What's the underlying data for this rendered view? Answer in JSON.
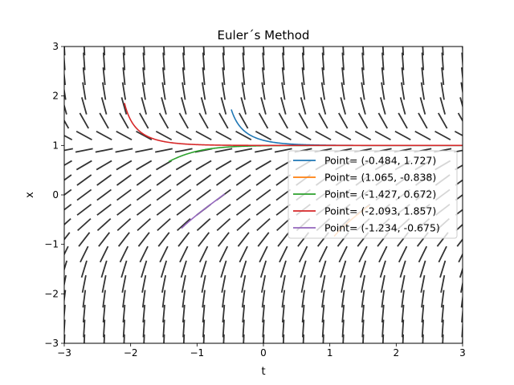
{
  "chart_data": {
    "type": "line",
    "title": "Euler´s Method",
    "xlabel": "t",
    "ylabel": "x",
    "xlim": [
      -3,
      3
    ],
    "ylim": [
      -3,
      3
    ],
    "xticks": [
      "−3",
      "−2",
      "−1",
      "0",
      "1",
      "2",
      "3"
    ],
    "yticks": [
      "−3",
      "−2",
      "−1",
      "0",
      "1",
      "2",
      "3"
    ],
    "grid": false,
    "legend_position": "center-right",
    "slope_field": {
      "equation": "x' = 1 - x^3",
      "nt": 21,
      "nx": 21,
      "color": "#333333"
    },
    "series": [
      {
        "name": "Point= (-0.484, 1.727)",
        "color": "#1f77b4",
        "start": [
          -0.484,
          1.727
        ],
        "t_end": 3,
        "direction": "forward"
      },
      {
        "name": "Point= (1.065, -0.838)",
        "color": "#ff7f0e",
        "start": [
          1.065,
          -0.838
        ],
        "t_end": 1.6,
        "direction": "forward"
      },
      {
        "name": "Point= (-1.427, 0.672)",
        "color": "#2ca02c",
        "start": [
          -1.427,
          0.672
        ],
        "t_end": 3,
        "direction": "forward"
      },
      {
        "name": "Point= (-2.093, 1.857)",
        "color": "#d62728",
        "start": [
          -2.093,
          1.857
        ],
        "t_end": 3,
        "direction": "forward"
      },
      {
        "name": "Point= (-1.234, -0.675)",
        "color": "#9467bd",
        "start": [
          -1.234,
          -0.675
        ],
        "t_end": -0.58,
        "direction": "forward"
      }
    ]
  }
}
